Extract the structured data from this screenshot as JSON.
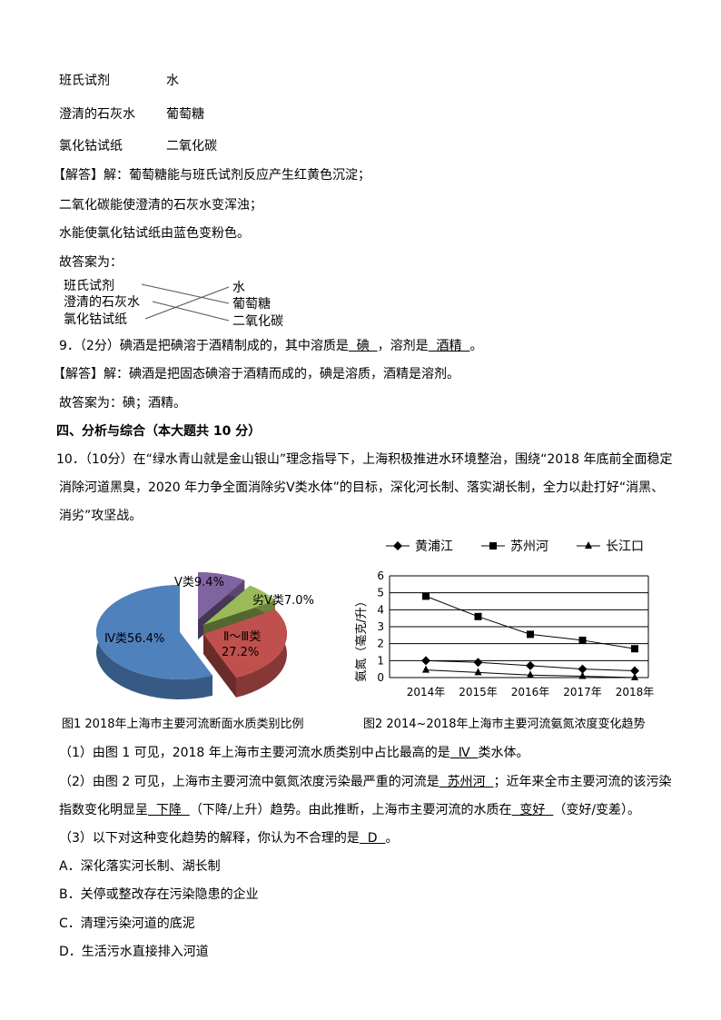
{
  "match_table": {
    "rows": [
      [
        "班氏试剂",
        "水"
      ],
      [
        "澄清的石灰水",
        "葡萄糖"
      ],
      [
        "氯化钴试纸",
        "二氧化碳"
      ]
    ]
  },
  "q8_answer": {
    "lines": [
      "【解答】解：葡萄糖能与班氏试剂反应产生红黄色沉淀；",
      "二氧化碳能使澄清的石灰水变浑浊；",
      "水能使氯化钴试纸由蓝色变粉色。",
      "故答案为："
    ]
  },
  "match_diagram": {
    "left": [
      "班氏试剂",
      "澄清的石灰水",
      "氯化钴试纸"
    ],
    "right": [
      "水",
      "葡萄糖",
      "二氧化碳"
    ],
    "links": [
      [
        0,
        1
      ],
      [
        1,
        2
      ],
      [
        2,
        0
      ]
    ]
  },
  "q9": {
    "prefix": "9．（2分）碘酒是把碘溶于酒精制成的，其中溶质是",
    "blank1": "  碘  ",
    "mid": "，溶剂是",
    "blank2": "  酒精  ",
    "suffix": "。",
    "answer": "【解答】解：碘酒是把固态碘溶于酒精而成的，碘是溶质，酒精是溶剂。",
    "final": "故答案为：碘；酒精。"
  },
  "section4": {
    "title": "四、分析与综合（本大题共 10 分）"
  },
  "q10": {
    "lines": [
      "10．（10分）在“绿水青山就是金山银山”理念指导下，上海积极推进水环境整治，围绕“2018 年底前全面稳定",
      "消除河道黑臭，2020 年力争全面消除劣Ⅴ类水体”的目标，深化河长制、落实湖长制，全力以赴打好“消黑、",
      "消劣”攻坚战。"
    ],
    "p1": {
      "pre": "（1）由图 1 可见，2018 年上海市主要河流水质类别中占比最高的是",
      "blank": "  Ⅳ  ",
      "post": "类水体。"
    },
    "p2a": {
      "pre": "（2）由图 2 可见，上海市主要河流中氨氮浓度污染最严重的河流是",
      "blank": "  苏州河  ",
      "post": "；近年来全市主要河流的该污染"
    },
    "p2b": {
      "pre": "指数变化明显呈",
      "blank1": "  下降  ",
      "mid": "（下降/上升）趋势。由此推断，上海市主要河流的水质在",
      "blank2": "  变好  ",
      "post": "（变好/变差）。"
    },
    "p3": {
      "pre": "（3）以下对这种变化趋势的解释，你认为不合理的是",
      "blank": "  D  ",
      "post": "。"
    },
    "options": [
      "A．深化落实河长制、湖长制",
      "B．关停或整改存在污染隐患的企业",
      "C．清理污染河道的底泥",
      "D．生活污水直接排入河道"
    ]
  },
  "chart_data": [
    {
      "type": "pie",
      "caption": "图1  2018年上海市主要河流断面水质类别比例",
      "slices": [
        {
          "label": "Ⅴ类",
          "value": 9.4,
          "text": "Ⅴ类9.4%",
          "color": "#8064a2"
        },
        {
          "label": "劣Ⅴ类",
          "value": 7.0,
          "text": "劣Ⅴ类7.0%",
          "color": "#9bbb59"
        },
        {
          "label": "Ⅱ～Ⅲ类",
          "value": 27.2,
          "text": "Ⅱ～Ⅲ类",
          "text2": "27.2%",
          "color": "#c0504d"
        },
        {
          "label": "Ⅳ类",
          "value": 56.4,
          "text": "Ⅳ类56.4%",
          "color": "#4f81bd"
        }
      ],
      "style": "3d-exploded"
    },
    {
      "type": "line",
      "caption": "图2  2014~2018年上海市主要河流氨氮浓度变化趋势",
      "ylabel": "氨氮（毫克/升）",
      "categories": [
        "2014年",
        "2015年",
        "2016年",
        "2017年",
        "2018年"
      ],
      "ylim": [
        0,
        6
      ],
      "yticks": [
        "0",
        "1",
        "2",
        "3",
        "4",
        "5",
        "6"
      ],
      "grid": true,
      "legend": "top",
      "series": [
        {
          "name": "黄浦江",
          "marker": "diamond",
          "values": [
            1.0,
            0.9,
            0.7,
            0.5,
            0.4
          ]
        },
        {
          "name": "苏州河",
          "marker": "square",
          "values": [
            4.8,
            3.6,
            2.55,
            2.2,
            1.7
          ]
        },
        {
          "name": "长江口",
          "marker": "triangle",
          "values": [
            0.45,
            0.3,
            0.15,
            0.08,
            0.0
          ]
        }
      ]
    }
  ]
}
